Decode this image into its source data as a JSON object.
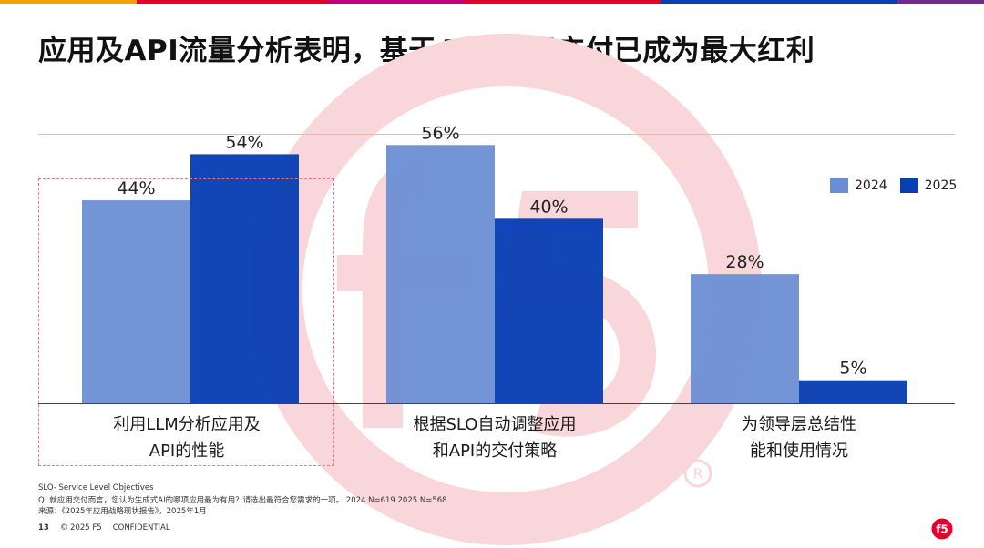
{
  "title": "应用及API流量分析表明，基于AI的应用交付已成为最大红利",
  "colors": {
    "series_2024": "#6b8fd4",
    "series_2025": "#0a3fb3",
    "accent_red": "#e4002b",
    "strip": [
      "#f5a300",
      "#e4002b",
      "#c4007a",
      "#e4002b",
      "#0a3fb3",
      "#6e2c91"
    ]
  },
  "chart_data": {
    "type": "bar",
    "categories": [
      "利用LLM分析应用及API的性能",
      "根据SLO自动调整应用和API的交付策略",
      "为领导层总结性能和使用情况"
    ],
    "category_lines": [
      [
        "利用LLM分析应用及",
        "API的性能"
      ],
      [
        "根据SLO自动调整应用",
        "和API的交付策略"
      ],
      [
        "为领导层总结性",
        "能和使用情况"
      ]
    ],
    "series": [
      {
        "name": "2024",
        "values": [
          44,
          56,
          28
        ],
        "labels": [
          "44%",
          "56%",
          "28%"
        ]
      },
      {
        "name": "2025",
        "values": [
          54,
          40,
          5
        ],
        "labels": [
          "54%",
          "40%",
          "5%"
        ]
      }
    ],
    "ylim": [
      0,
      60
    ],
    "unit": "%",
    "legend_position": "top-right",
    "grid": false
  },
  "footnotes": {
    "line1": "SLO- Service Level Objectives",
    "line2": "Q: 就应用交付而言，您认为生成式AI的哪项应用最为有用？请选出最符合您需求的一项。 2024 N=619 2025 N=568",
    "line3": "来源：《2025年应用战略现状报告》，2025年1月"
  },
  "footer": {
    "page": "13",
    "copyright": "© 2025 F5",
    "confidential": "CONFIDENTIAL"
  },
  "logo": {
    "text": "f5",
    "icon": "f5-logo-icon"
  }
}
